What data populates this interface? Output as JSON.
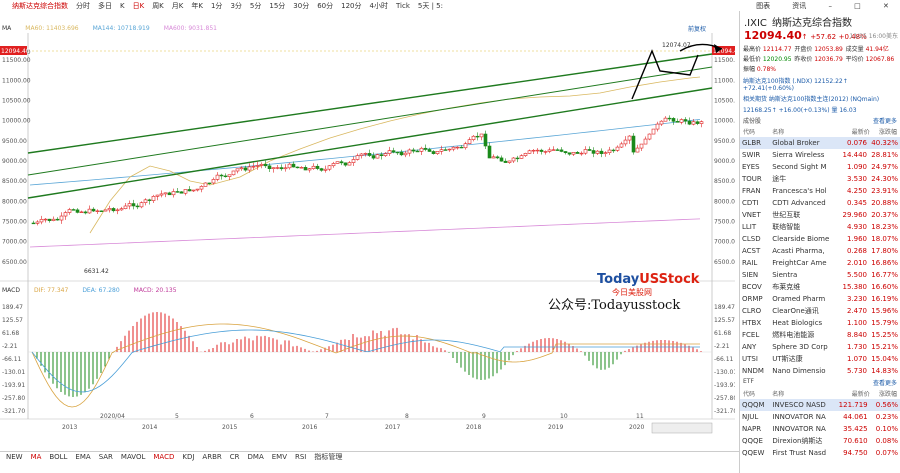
{
  "app": {
    "title": "纳斯达克综合指数",
    "window_controls": [
      "–",
      "□",
      "✕"
    ]
  },
  "toolbar": [
    "分时",
    "多日",
    "K",
    "日K",
    "周K",
    "月K",
    "年K",
    "1分",
    "3分",
    "5分",
    "15分",
    "30分",
    "60分",
    "120分",
    "4小时",
    "Tick",
    "5天 | 5:"
  ],
  "toolbar_active": "日K",
  "right_tabs": [
    "图表",
    "资讯"
  ],
  "main_chart": {
    "ma_legend": [
      "MA",
      "MA60: 11403.696",
      "MA144: 10718.919",
      "MA600: 9031.851"
    ],
    "y_labels": [
      "12094.40",
      "11500.00",
      "11000.00",
      "10500.00",
      "10000.00",
      "9500.00",
      "9000.00",
      "8500.00",
      "8000.00",
      "7500.00",
      "7000.00",
      "6500.00"
    ],
    "annotations": {
      "low": "6631.42",
      "high": "12074.07",
      "current": "12094.40",
      "fq": "前复权"
    }
  },
  "macd_chart": {
    "legend": [
      "MACD",
      "DIF: 77.347",
      "DEA: 67.280",
      "MACD: 20.135"
    ],
    "y_labels": [
      "189.47",
      "125.57",
      "61.68",
      "-2.21",
      "-66.11",
      "-130.01",
      "-193.91",
      "-257.80",
      "-321.70"
    ],
    "right_labels": [
      "189.47",
      "125.57",
      "61.68",
      "-2.21",
      "-66.11",
      "-130.01",
      "-193.91",
      "-257.80",
      "-321.70"
    ]
  },
  "time_axis_top": [
    "2020/04",
    "5",
    "6",
    "7",
    "8",
    "9",
    "10",
    "11"
  ],
  "time_axis_years": [
    "2013",
    "2014",
    "2015",
    "2016",
    "2017",
    "2018",
    "2019",
    "2020"
  ],
  "bottom_tabs": [
    "NEW",
    "MA",
    "BOLL",
    "EMA",
    "SAR",
    "MAVOL",
    "MACD",
    "KDJ",
    "ARBR",
    "CR",
    "DMA",
    "EMV",
    "RSI",
    "指标管理"
  ],
  "bottom_active": [
    "MA",
    "MACD"
  ],
  "sidebar": {
    "symbol": ".IXIC",
    "name": "纳斯达克综合指数",
    "price": "12094.40",
    "arrow": "↑",
    "change": "+57.62",
    "change_pct": "+0.48%",
    "date": "11/25 16:00美东",
    "stats": [
      [
        "最高价",
        "12114.77",
        "开盘价",
        "12053.89",
        "成交量",
        "41.94亿"
      ],
      [
        "最低价",
        "12020.95",
        "昨收价",
        "12036.79",
        "平均价",
        "12067.86"
      ],
      [
        "振幅",
        "0.78%",
        "",
        "",
        "",
        ""
      ]
    ],
    "related": [
      "纳斯达克100指数 (.NDX)  12152.22↑ +72.41(+0.60%)",
      "相关期货 纳斯达克100指数主连(2012) (NQmain)",
      "12168.25↑ +16.00(+0.13%) 量 16.03"
    ],
    "section_constituents": "成份股",
    "more_label": "查看更多",
    "col_headers": [
      "代码",
      "名称",
      "最新价",
      "涨跌幅"
    ],
    "constituents": [
      [
        "GLBR",
        "Global Broker",
        "0.076",
        "40.32%"
      ],
      [
        "SWIR",
        "Sierra Wireless",
        "14.440",
        "28.81%"
      ],
      [
        "EYES",
        "Second Sight M",
        "1.090",
        "24.97%"
      ],
      [
        "TOUR",
        "途牛",
        "3.530",
        "24.30%"
      ],
      [
        "FRAN",
        "Francesca's Hol",
        "4.250",
        "23.91%"
      ],
      [
        "CDTI",
        "CDTI Advanced",
        "0.345",
        "20.88%"
      ],
      [
        "VNET",
        "世纪互联",
        "29.960",
        "20.37%"
      ],
      [
        "LLIT",
        "联络智能",
        "4.930",
        "18.23%"
      ],
      [
        "CLSD",
        "Clearside Biome",
        "1.960",
        "18.07%"
      ],
      [
        "ACST",
        "Acasti Pharma,",
        "0.268",
        "17.80%"
      ],
      [
        "RAIL",
        "FreightCar Ame",
        "2.010",
        "16.86%"
      ],
      [
        "SIEN",
        "Sientra",
        "5.500",
        "16.77%"
      ],
      [
        "BCOV",
        "布莱克维",
        "15.380",
        "16.60%"
      ],
      [
        "ORMP",
        "Oramed Pharm",
        "3.230",
        "16.19%"
      ],
      [
        "CLRO",
        "ClearOne通讯",
        "2.470",
        "15.96%"
      ],
      [
        "HTBX",
        "Heat Biologics",
        "1.100",
        "15.79%"
      ],
      [
        "FCEL",
        "燃料电池能源",
        "8.840",
        "15.25%"
      ],
      [
        "ANY",
        "Sphere 3D Corp",
        "1.730",
        "15.21%"
      ],
      [
        "UTSI",
        "UT斯达康",
        "1.070",
        "15.04%"
      ],
      [
        "NNDM",
        "Nano Dimensio",
        "5.730",
        "14.83%"
      ]
    ],
    "section_etf": "ETF",
    "etfs": [
      [
        "QQQM",
        "INVESCO NASD",
        "121.719",
        "0.56%"
      ],
      [
        "NJUL",
        "INNOVATOR NA",
        "44.061",
        "0.23%"
      ],
      [
        "NAPR",
        "INNOVATOR NA",
        "35.425",
        "0.10%"
      ],
      [
        "QQQE",
        "Direxion纳斯达",
        "70.610",
        "0.08%"
      ],
      [
        "QQEW",
        "First Trust Nasd",
        "94.750",
        "0.07%"
      ]
    ]
  },
  "watermark": {
    "brand_a": "Today",
    "brand_b": "USStock",
    "brand_cn": "今日美股网",
    "wechat": "公众号:Todayusstock"
  },
  "colors": {
    "up": "#e02020",
    "down": "#1a8a1a",
    "channel": "#1f7a1f",
    "ma60": "#d9b860",
    "ma144": "#5aa6d6",
    "ma600": "#d88ad8",
    "dif": "#d9a441",
    "dea": "#4a9fd8"
  }
}
